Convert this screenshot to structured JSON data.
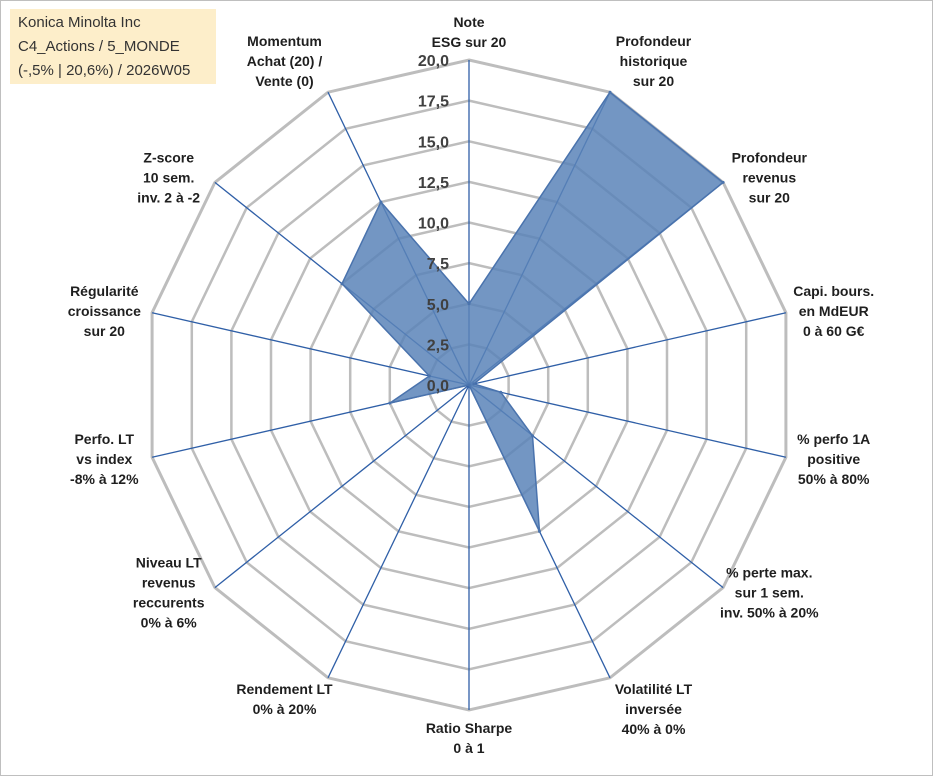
{
  "header": {
    "company": "Konica Minolta Inc",
    "portfolio": "C4_Actions / 5_MONDE",
    "period": "(-,5% | 20,6%) / 2026W05"
  },
  "colors": {
    "series_fill": "#5b84b8",
    "series_stroke": "#4a73ad",
    "spokes": "#2f5fa7",
    "grid": "#bdbdbd",
    "info_box": "#fdeeca"
  },
  "chart_data": {
    "type": "radar",
    "title": "",
    "rlim": [
      0,
      20
    ],
    "grid": true,
    "tick_labels": [
      "0,0",
      "2,5",
      "5,0",
      "7,5",
      "10,0",
      "12,5",
      "15,0",
      "17,5",
      "20,0"
    ],
    "axes": [
      {
        "label": [
          "Note",
          "ESG sur 20"
        ],
        "value": 5
      },
      {
        "label": [
          "Profondeur",
          "historique",
          "sur 20"
        ],
        "value": 20
      },
      {
        "label": [
          "Profondeur",
          "revenus",
          "sur 20"
        ],
        "value": 20
      },
      {
        "label": [
          "Capi. bours.",
          "en MdEUR",
          "0 à 60 G€"
        ],
        "value": 0.3
      },
      {
        "label": [
          "% perfo 1A",
          "positive",
          "50% à 80%"
        ],
        "value": 2
      },
      {
        "label": [
          "% perte max.",
          "sur 1 sem.",
          "inv. 50% à 20%"
        ],
        "value": 5
      },
      {
        "label": [
          "Volatilité LT",
          "inversée",
          "40% à 0%"
        ],
        "value": 10
      },
      {
        "label": [
          "Ratio Sharpe",
          "0 à 1"
        ],
        "value": 0
      },
      {
        "label": [
          "Rendement LT",
          "0% à 20%"
        ],
        "value": 0
      },
      {
        "label": [
          "Niveau LT",
          "revenus",
          "reccurents",
          "0% à 6%"
        ],
        "value": 0
      },
      {
        "label": [
          "Perfo. LT",
          "vs index",
          "-8% à 12%"
        ],
        "value": 5
      },
      {
        "label": [
          "Régularité",
          "croissance",
          "sur 20"
        ],
        "value": 2.5
      },
      {
        "label": [
          "Z-score",
          "10 sem.",
          "inv. 2 à -2"
        ],
        "value": 10
      },
      {
        "label": [
          "Momentum",
          "Achat (20) /",
          "Vente (0)"
        ],
        "value": 12.5
      }
    ]
  }
}
